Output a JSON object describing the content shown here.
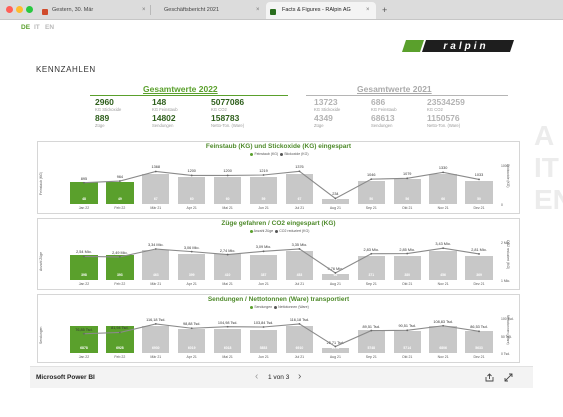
{
  "browser": {
    "tabs": [
      {
        "title": "Gestern, 30. Mär"
      },
      {
        "title": "Geschäftsbericht 2021"
      },
      {
        "title": "Facts & Figures - RAlpin AG"
      }
    ],
    "new_tab_symbol": "+",
    "close_symbol": "×",
    "window_colors": [
      "#ff5f57",
      "#febc2e",
      "#28c840"
    ]
  },
  "languages": [
    "DE",
    "IT",
    "EN"
  ],
  "active_language": "DE",
  "brand": {
    "name": "ralpin",
    "color": "#5aa02c"
  },
  "page": {
    "title": "KENNZAHLEN"
  },
  "kpis": {
    "current": {
      "title": "Gesamtwerte 2022",
      "items": [
        {
          "value": "2960",
          "label": "KG Stickoxide"
        },
        {
          "value": "148",
          "label": "KG Feinstaub"
        },
        {
          "value": "5077086",
          "label": "KG CO2"
        },
        {
          "value": "889",
          "label": "Züge"
        },
        {
          "value": "14802",
          "label": "Sendungen"
        },
        {
          "value": "158783",
          "label": "Netto-Ton. (Ware)"
        }
      ]
    },
    "previous": {
      "title": "Gesamtwerte 2021",
      "items": [
        {
          "value": "13723",
          "label": "KG Stickoxide"
        },
        {
          "value": "686",
          "label": "KG Feinstaub"
        },
        {
          "value": "23534259",
          "label": "KG CO2"
        },
        {
          "value": "4349",
          "label": "Züge"
        },
        {
          "value": "68613",
          "label": "Sendungen"
        },
        {
          "value": "1150576",
          "label": "Netto-Ton. (Ware)"
        }
      ]
    }
  },
  "colors": {
    "green": "#5aa02c",
    "gray_bar": "#c8c8c8",
    "line": "#8a8a8a",
    "title_green": "#4e8a2a"
  },
  "chart_data": [
    {
      "type": "bar",
      "title": "Feinstaub (KG) und Stickoxide (KG) eingespart",
      "legend": [
        "Feinstaub (KG)",
        "Stickoxide (KG)"
      ],
      "ylabel": "Feinstaub (KG)",
      "y2label": "Stickoxide (KG)",
      "y2ticks": [
        "1000",
        "0"
      ],
      "categories": [
        "Jan 22",
        "Feb 22",
        "Mär 21",
        "Apr 21",
        "Mai 21",
        "Jun 21",
        "Jul 21",
        "Aug 21",
        "Sep 21",
        "Okt 21",
        "Nov 21",
        "Dez 21"
      ],
      "bar_series": {
        "name": "Feinstaub (KG)",
        "values": [
          48,
          49,
          67,
          60,
          60,
          59,
          67,
          11,
          50,
          56,
          66,
          50
        ]
      },
      "line_series": {
        "name": "Stickoxide (KG)",
        "values": [
          895,
          964,
          1368,
          1200,
          1200,
          1219,
          1376,
          234,
          1046,
          1079,
          1330,
          1033
        ],
        "labels": [
          "895",
          "964",
          "1368",
          "1200",
          "1200",
          "1219",
          "1376",
          "234",
          "1046",
          "1079",
          "1330",
          "1033"
        ]
      },
      "green_count": 2
    },
    {
      "type": "bar",
      "title": "Züge gefahren / CO2 eingespart (KG)",
      "legend": [
        "Anzahl Züge",
        "CO2 reduziert (KG)"
      ],
      "ylabel": "Anzahl Züge",
      "y2label": "CO2 reduziert (KG)",
      "y2ticks": [
        "2 Mio.",
        "1 Mio."
      ],
      "categories": [
        "Jan 22",
        "Feb 22",
        "Mär 21",
        "Apr 21",
        "Mai 21",
        "Jun 21",
        "Jul 21",
        "Aug 21",
        "Sep 21",
        "Okt 21",
        "Nov 21",
        "Dez 21"
      ],
      "bar_series": {
        "name": "Anzahl Züge",
        "values": [
          398,
          393,
          463,
          399,
          410,
          387,
          453,
          96,
          371,
          380,
          456,
          369
        ]
      },
      "line_series": {
        "name": "CO2 reduziert (KG)",
        "values": [
          2.54,
          2.49,
          3.34,
          3.06,
          2.74,
          3.09,
          3.35,
          0.76,
          2.83,
          2.85,
          3.43,
          2.81
        ],
        "labels": [
          "2,54 Mio.",
          "2,49 Mio.",
          "3,34 Mio.",
          "3,06 Mio.",
          "2,74 Mio.",
          "3,09 Mio.",
          "3,35 Mio.",
          "0,76 Mio.",
          "2,83 Mio.",
          "2,85 Mio.",
          "3,43 Mio.",
          "2,81 Mio."
        ]
      },
      "green_count": 2
    },
    {
      "type": "bar",
      "title": "Sendungen / Nettotonnen (Ware) transportiert",
      "legend": [
        "Sendungen",
        "Nettotonnen (Ware)"
      ],
      "ylabel": "Sendungen",
      "y2label": "Nettotonnen (Ware)",
      "y2ticks": [
        "100 Tsd.",
        "50 Tsd.",
        "0 Tsd."
      ],
      "categories": [
        "Jan 22",
        "Feb 22",
        "Mär 21",
        "Apr 21",
        "Mai 21",
        "Jun 21",
        "Jul 21",
        "Aug 21",
        "Sep 21",
        "Okt 21",
        "Nov 21",
        "Dez 21"
      ],
      "bar_series": {
        "name": "Sendungen",
        "values": [
          6878,
          6928,
          6930,
          6019,
          6018,
          5853,
          6910,
          1378,
          5748,
          5714,
          6806,
          5633
        ]
      },
      "line_series": {
        "name": "Nettotonnen (Ware)",
        "values": [
          76.85,
          81.94,
          116.18,
          98.88,
          104.98,
          103.84,
          116.18,
          25.71,
          89.51,
          90.51,
          108.83,
          86.53
        ],
        "labels": [
          "76,85 Tsd.",
          "81,94 Tsd.",
          "116,18 Tsd.",
          "98,88 Tsd.",
          "104,98 Tsd.",
          "103,84 Tsd.",
          "116,18 Tsd.",
          "25,71 Tsd.",
          "89,51 Tsd.",
          "90,51 Tsd.",
          "108,83 Tsd.",
          "86,53 Tsd."
        ]
      },
      "green_count": 2
    }
  ],
  "footer": {
    "app": "Microsoft Power BI",
    "pagination": "1 von 3",
    "prev_symbol": "‹",
    "next_symbol": "›",
    "share_icon": "share-icon",
    "expand_icon": "fullscreen-icon"
  },
  "side_text": "A\nIT\nEN"
}
